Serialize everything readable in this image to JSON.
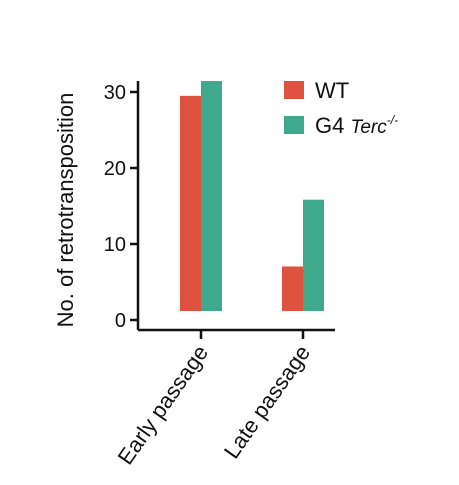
{
  "colors": {
    "wt": "#e05240",
    "g4": "#3fa98e",
    "axis": "#111111"
  },
  "chart_data": {
    "type": "bar",
    "categories": [
      "Early passage",
      "Late passage"
    ],
    "series": [
      {
        "name": "WT",
        "values": [
          29,
          6
        ]
      },
      {
        "name": "G4 Terc-/-",
        "values": [
          31,
          15
        ]
      }
    ],
    "legend_parts": [
      {
        "prefix": "WT",
        "italic": "",
        "sup": ""
      },
      {
        "prefix": "G4 ",
        "italic": "Terc",
        "sup": "-/-"
      }
    ],
    "title": "",
    "xlabel": "",
    "ylabel": "No. of retrotransposition",
    "yticks": [
      0,
      10,
      20,
      30
    ],
    "ylim": [
      0,
      31
    ],
    "grid": false,
    "legend_position": "top-right"
  }
}
